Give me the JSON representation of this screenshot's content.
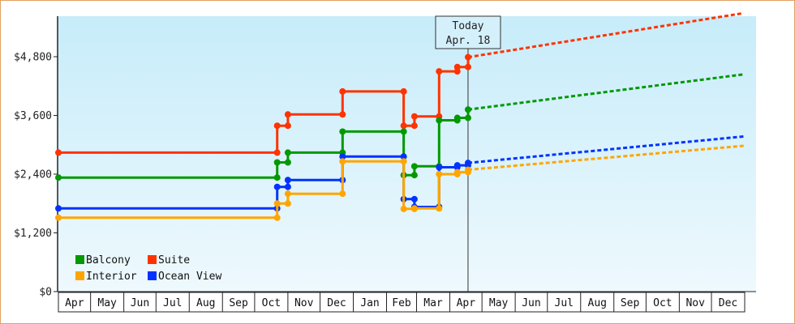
{
  "chart_data": {
    "type": "line",
    "title": "",
    "xlabel": "",
    "ylabel": "",
    "y_axis": {
      "min": 0,
      "max": 4800,
      "ticks": [
        0,
        1200,
        2400,
        3600,
        4800
      ],
      "tick_labels": [
        "$0",
        "$1,200",
        "$2,400",
        "$3,600",
        "$4,800"
      ]
    },
    "x_axis": {
      "start": "2017-04-01",
      "end": "2018-12-31",
      "months": [
        {
          "label": "Apr",
          "start": "2017-04-01"
        },
        {
          "label": "May",
          "start": "2017-05-01"
        },
        {
          "label": "Jun",
          "start": "2017-06-01"
        },
        {
          "label": "Jul",
          "start": "2017-07-01"
        },
        {
          "label": "Aug",
          "start": "2017-08-01"
        },
        {
          "label": "Sep",
          "start": "2017-09-01"
        },
        {
          "label": "Oct",
          "start": "2017-10-01"
        },
        {
          "label": "Nov",
          "start": "2017-11-01"
        },
        {
          "label": "Dec",
          "start": "2017-12-01"
        },
        {
          "label": "Jan",
          "start": "2018-01-01"
        },
        {
          "label": "Feb",
          "start": "2018-02-01"
        },
        {
          "label": "Mar",
          "start": "2018-03-01"
        },
        {
          "label": "Apr",
          "start": "2018-04-01"
        },
        {
          "label": "May",
          "start": "2018-05-01"
        },
        {
          "label": "Jun",
          "start": "2018-06-01"
        },
        {
          "label": "Jul",
          "start": "2018-07-01"
        },
        {
          "label": "Aug",
          "start": "2018-08-01"
        },
        {
          "label": "Sep",
          "start": "2018-09-01"
        },
        {
          "label": "Oct",
          "start": "2018-10-01"
        },
        {
          "label": "Nov",
          "start": "2018-11-01"
        },
        {
          "label": "Dec",
          "start": "2018-12-01"
        }
      ]
    },
    "grid": false,
    "legend_position": "bottom-left",
    "today": {
      "line1": "Today",
      "line2": "Apr. 18",
      "date": "2018-04-18"
    },
    "series": [
      {
        "name": "Suite",
        "color": "#ff3300",
        "points": [
          {
            "x": "2017-04-01",
            "y": 2840
          },
          {
            "x": "2017-10-22",
            "y": 2840
          },
          {
            "x": "2017-10-22",
            "y": 3390
          },
          {
            "x": "2017-11-01",
            "y": 3390
          },
          {
            "x": "2017-11-01",
            "y": 3620
          },
          {
            "x": "2017-12-22",
            "y": 3620
          },
          {
            "x": "2017-12-22",
            "y": 4090
          },
          {
            "x": "2018-02-17",
            "y": 4090
          },
          {
            "x": "2018-02-17",
            "y": 3390
          },
          {
            "x": "2018-02-27",
            "y": 3390
          },
          {
            "x": "2018-02-27",
            "y": 3580
          },
          {
            "x": "2018-03-22",
            "y": 3580
          },
          {
            "x": "2018-03-22",
            "y": 4500
          },
          {
            "x": "2018-04-08",
            "y": 4500
          },
          {
            "x": "2018-04-08",
            "y": 4590
          },
          {
            "x": "2018-04-18",
            "y": 4590
          },
          {
            "x": "2018-04-18",
            "y": 4790
          }
        ],
        "projection": [
          {
            "x": "2018-04-18",
            "y": 4790
          },
          {
            "x": "2018-12-31",
            "y": 5690
          }
        ]
      },
      {
        "name": "Balcony",
        "color": "#009900",
        "points": [
          {
            "x": "2017-04-01",
            "y": 2330
          },
          {
            "x": "2017-10-22",
            "y": 2330
          },
          {
            "x": "2017-10-22",
            "y": 2640
          },
          {
            "x": "2017-11-01",
            "y": 2640
          },
          {
            "x": "2017-11-01",
            "y": 2840
          },
          {
            "x": "2017-12-22",
            "y": 2840
          },
          {
            "x": "2017-12-22",
            "y": 3270
          },
          {
            "x": "2018-02-17",
            "y": 3270
          },
          {
            "x": "2018-02-17",
            "y": 2380
          },
          {
            "x": "2018-02-27",
            "y": 2380
          },
          {
            "x": "2018-02-27",
            "y": 2560
          },
          {
            "x": "2018-03-22",
            "y": 2560
          },
          {
            "x": "2018-03-22",
            "y": 3500
          },
          {
            "x": "2018-04-08",
            "y": 3500
          },
          {
            "x": "2018-04-08",
            "y": 3550
          },
          {
            "x": "2018-04-18",
            "y": 3550
          },
          {
            "x": "2018-04-18",
            "y": 3720
          }
        ],
        "projection": [
          {
            "x": "2018-04-18",
            "y": 3720
          },
          {
            "x": "2018-12-31",
            "y": 4440
          }
        ]
      },
      {
        "name": "Ocean View",
        "color": "#0033ff",
        "points": [
          {
            "x": "2017-04-01",
            "y": 1700
          },
          {
            "x": "2017-10-22",
            "y": 1700
          },
          {
            "x": "2017-10-22",
            "y": 2140
          },
          {
            "x": "2017-11-01",
            "y": 2140
          },
          {
            "x": "2017-11-01",
            "y": 2280
          },
          {
            "x": "2017-12-22",
            "y": 2280
          },
          {
            "x": "2017-12-22",
            "y": 2760
          },
          {
            "x": "2018-02-17",
            "y": 2760
          },
          {
            "x": "2018-02-17",
            "y": 1890
          },
          {
            "x": "2018-02-27",
            "y": 1890
          },
          {
            "x": "2018-02-27",
            "y": 1730
          },
          {
            "x": "2018-03-22",
            "y": 1730
          },
          {
            "x": "2018-03-22",
            "y": 2540
          },
          {
            "x": "2018-04-08",
            "y": 2540
          },
          {
            "x": "2018-04-08",
            "y": 2580
          },
          {
            "x": "2018-04-18",
            "y": 2580
          },
          {
            "x": "2018-04-18",
            "y": 2630
          }
        ],
        "projection": [
          {
            "x": "2018-04-18",
            "y": 2630
          },
          {
            "x": "2018-12-31",
            "y": 3170
          }
        ]
      },
      {
        "name": "Interior",
        "color": "#ffa500",
        "points": [
          {
            "x": "2017-04-01",
            "y": 1510
          },
          {
            "x": "2017-10-22",
            "y": 1510
          },
          {
            "x": "2017-10-22",
            "y": 1800
          },
          {
            "x": "2017-11-01",
            "y": 1800
          },
          {
            "x": "2017-11-01",
            "y": 2000
          },
          {
            "x": "2017-12-22",
            "y": 2000
          },
          {
            "x": "2017-12-22",
            "y": 2660
          },
          {
            "x": "2018-02-17",
            "y": 2660
          },
          {
            "x": "2018-02-17",
            "y": 1690
          },
          {
            "x": "2018-02-27",
            "y": 1690
          },
          {
            "x": "2018-02-27",
            "y": 1700
          },
          {
            "x": "2018-03-22",
            "y": 1700
          },
          {
            "x": "2018-03-22",
            "y": 2400
          },
          {
            "x": "2018-04-08",
            "y": 2400
          },
          {
            "x": "2018-04-08",
            "y": 2440
          },
          {
            "x": "2018-04-18",
            "y": 2440
          },
          {
            "x": "2018-04-18",
            "y": 2490
          }
        ],
        "projection": [
          {
            "x": "2018-04-18",
            "y": 2490
          },
          {
            "x": "2018-12-31",
            "y": 2980
          }
        ]
      }
    ],
    "legend": [
      {
        "name": "Balcony",
        "color": "#009900"
      },
      {
        "name": "Suite",
        "color": "#ff3300"
      },
      {
        "name": "Interior",
        "color": "#ffa500"
      },
      {
        "name": "Ocean View",
        "color": "#0033ff"
      }
    ]
  }
}
